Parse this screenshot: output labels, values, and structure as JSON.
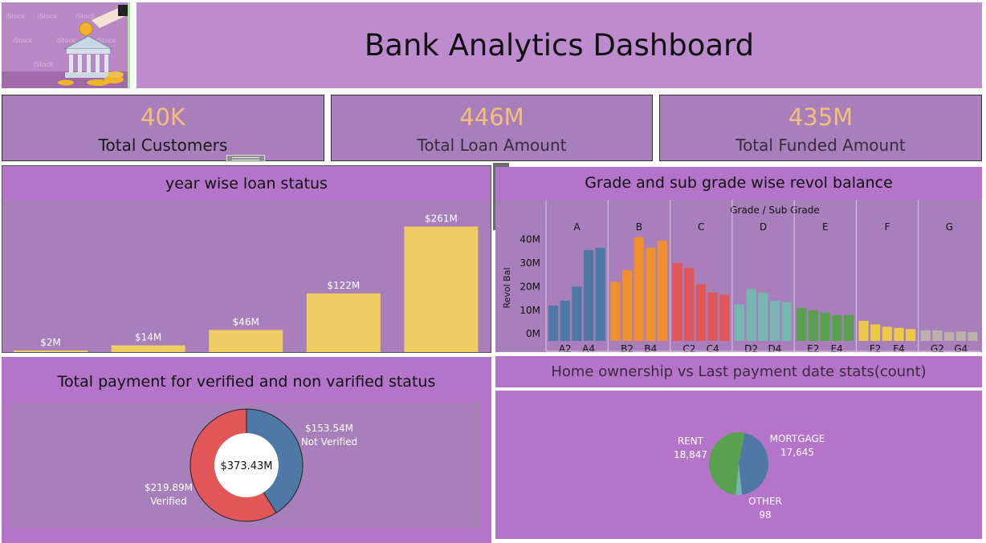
{
  "header": {
    "title": "Bank Analytics Dashboard",
    "logo_icon": "bank-coin-illustration"
  },
  "kpis": [
    {
      "value": "40K",
      "label": "Total Customers"
    },
    {
      "value": "446M",
      "label": "Total Loan Amount"
    },
    {
      "value": "435M",
      "label": "Total Funded Amount"
    }
  ],
  "toolbar": {
    "icons": [
      "close-icon",
      "popout-icon",
      "filter-icon",
      "more-options-icon"
    ]
  },
  "colors": {
    "page_background": "#ffffff",
    "header_background": "#be8bcf",
    "panel_background": "#a87fba",
    "section_background": "#b474c9",
    "kpi_value": "#f3c07a",
    "bar_yellow": "#f0cd62",
    "grade_A": "#4e79a7",
    "grade_B": "#f28e2b",
    "grade_C": "#e15759",
    "grade_D": "#76b7b2",
    "grade_E": "#59a14f",
    "grade_F": "#edc948",
    "grade_G": "#bab0ac"
  },
  "charts": {
    "year_loan": {
      "title": "year wise loan status",
      "chart_data": {
        "type": "bar",
        "categories": [
          "",
          "",
          "",
          "",
          ""
        ],
        "values": [
          2,
          14,
          46,
          122,
          261
        ],
        "data_labels": [
          "$2M",
          "$14M",
          "$46M",
          "$122M",
          "$261M"
        ],
        "unit": "$M",
        "ylim": [
          0,
          270
        ],
        "grid": false,
        "title": "year wise loan status",
        "xlabel": "",
        "ylabel": ""
      }
    },
    "revol": {
      "title": "Grade and sub grade wise revol balance",
      "header": "Grade / Sub Grade",
      "chart_data": {
        "type": "bar",
        "title": "Grade and sub grade wise revol balance",
        "header": "Grade / Sub Grade",
        "ylabel": "Revol Bal",
        "yticks": [
          "0M",
          "10M",
          "20M",
          "30M",
          "40M"
        ],
        "ylim": [
          -3,
          46
        ],
        "grades": [
          {
            "name": "A",
            "color": "#4e79a7",
            "subgrades": [
              "A1",
              "A2",
              "A3",
              "A4",
              "A5"
            ],
            "values": [
              12,
              14,
              20,
              35.5,
              36.5
            ],
            "tick_labels": [
              "",
              "A2",
              "",
              "A4",
              ""
            ]
          },
          {
            "name": "B",
            "color": "#f28e2b",
            "subgrades": [
              "B1",
              "B2",
              "B3",
              "B4",
              "B5"
            ],
            "values": [
              22,
              27,
              41,
              36.5,
              39.5
            ],
            "tick_labels": [
              "",
              "B2",
              "",
              "B4",
              ""
            ]
          },
          {
            "name": "C",
            "color": "#e15759",
            "subgrades": [
              "C1",
              "C2",
              "C3",
              "C4",
              "C5"
            ],
            "values": [
              30,
              28,
              21,
              17.5,
              16.5
            ],
            "tick_labels": [
              "",
              "C2",
              "",
              "C4",
              ""
            ]
          },
          {
            "name": "D",
            "color": "#76b7b2",
            "subgrades": [
              "D1",
              "D2",
              "D3",
              "D4",
              "D5"
            ],
            "values": [
              12.5,
              19,
              17.5,
              14,
              13.5
            ],
            "tick_labels": [
              "",
              "D2",
              "",
              "D4",
              ""
            ]
          },
          {
            "name": "E",
            "color": "#59a14f",
            "subgrades": [
              "E1",
              "E2",
              "E3",
              "E4",
              "E5"
            ],
            "values": [
              11,
              10,
              9,
              8,
              8
            ],
            "tick_labels": [
              "",
              "E2",
              "",
              "E4",
              ""
            ]
          },
          {
            "name": "F",
            "color": "#edc948",
            "subgrades": [
              "F1",
              "F2",
              "F3",
              "F4",
              "F5"
            ],
            "values": [
              5.5,
              4,
              3,
              2.5,
              2
            ],
            "tick_labels": [
              "",
              "F2",
              "",
              "F4",
              ""
            ]
          },
          {
            "name": "G",
            "color": "#bab0ac",
            "subgrades": [
              "G1",
              "G2",
              "G3",
              "G4",
              "G5"
            ],
            "values": [
              1.5,
              1.5,
              0.7,
              1,
              0.7
            ],
            "tick_labels": [
              "",
              "G2",
              "",
              "G4",
              ""
            ]
          }
        ]
      }
    },
    "payment": {
      "title": "Total payment for verified and non varified status",
      "chart_data": {
        "type": "pie",
        "donut": true,
        "total_label": "$373.43M",
        "slices": [
          {
            "name": "Not Verified",
            "value": 153.54,
            "label": "$153.54M",
            "color": "#4e79a7"
          },
          {
            "name": "Verified",
            "value": 219.89,
            "label": "$219.89M",
            "color": "#e15759"
          }
        ]
      }
    },
    "home": {
      "title": "Home ownership vs Last payment date stats(count)",
      "chart_data": {
        "type": "pie",
        "slices": [
          {
            "name": "MORTGAGE",
            "value": 17645,
            "label": "17,645",
            "color": "#4e79a7"
          },
          {
            "name": "OTHER",
            "value": 98,
            "label": "98",
            "color": "#76b7b2"
          },
          {
            "name": "RENT",
            "value": 18847,
            "label": "18,847",
            "color": "#59a14f"
          }
        ]
      }
    }
  }
}
